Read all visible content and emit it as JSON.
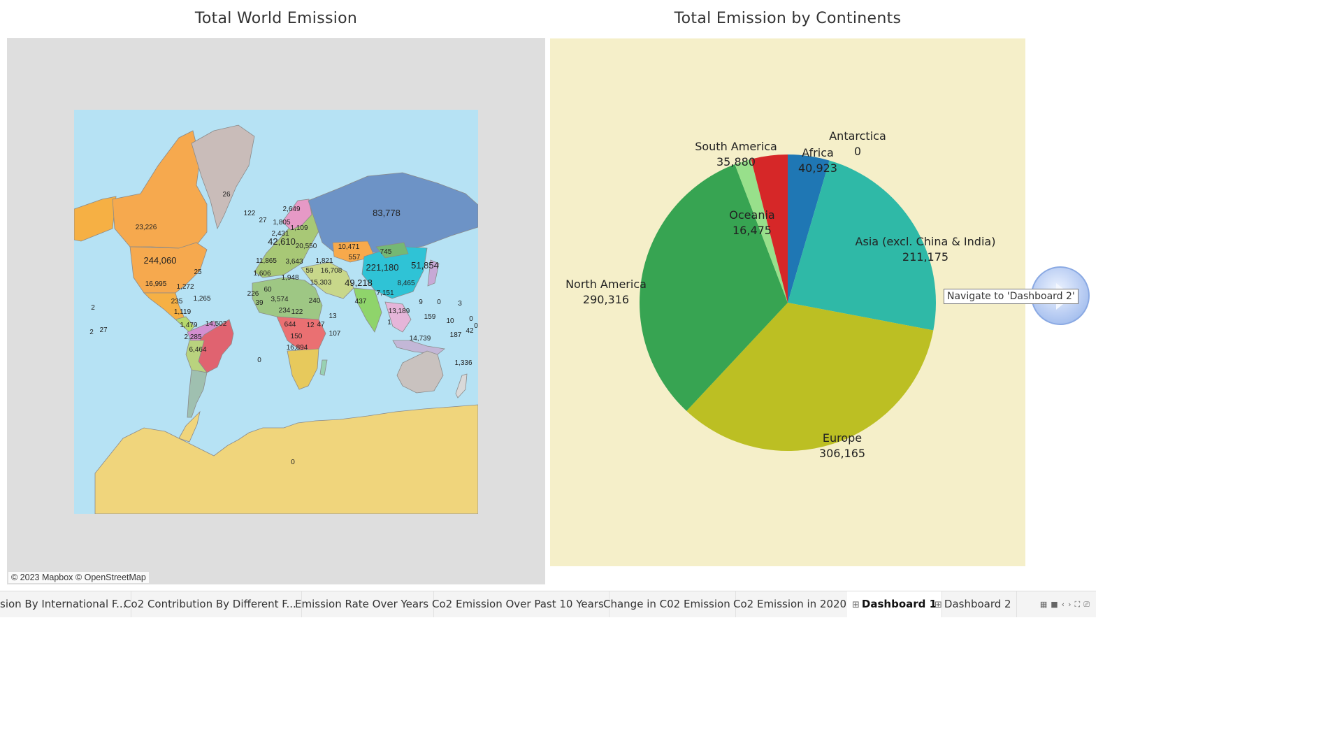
{
  "map": {
    "title": "Total World Emission",
    "credit": "© 2023 Mapbox © OpenStreetMap",
    "labels": [
      "26",
      "122",
      "27",
      "2,649",
      "1,805",
      "1,109",
      "2,431",
      "42,610",
      "20,550",
      "83,778",
      "10,471",
      "23,226",
      "745",
      "557",
      "244,060",
      "11,865",
      "3,643",
      "1,821",
      "16,708",
      "221,180",
      "51,854",
      "25",
      "1,606",
      "1,948",
      "15,303",
      "49,218",
      "8,465",
      "16,995",
      "1,272",
      "60",
      "226",
      "3,574",
      "240",
      "437",
      "7,151",
      "235",
      "1,265",
      "39",
      "234",
      "122",
      "13,189",
      "9",
      "0",
      "3",
      "2",
      "1,119",
      "13",
      "159",
      "10",
      "0",
      "1,479",
      "14,502",
      "644",
      "12",
      "47",
      "107",
      "1",
      "0",
      "2",
      "27",
      "2,285",
      "150",
      "187",
      "42",
      "6,464",
      "16,894",
      "14,739",
      "1,336",
      "0",
      "0",
      "59"
    ]
  },
  "chart_data": {
    "type": "pie",
    "title": "Total Emission by Continents",
    "slices": [
      {
        "label": "Africa",
        "value": 40923,
        "display": "40,923",
        "color": "#1f77b4"
      },
      {
        "label": "Antarctica",
        "value": 0,
        "display": "0",
        "color": "#888888"
      },
      {
        "label": "Asia (excl. China & India)",
        "value": 211175,
        "display": "211,175",
        "color": "#2fb9a7"
      },
      {
        "label": "Europe",
        "value": 306165,
        "display": "306,165",
        "color": "#bcbf23"
      },
      {
        "label": "North America",
        "value": 290316,
        "display": "290,316",
        "color": "#37a452"
      },
      {
        "label": "Oceania",
        "value": 16475,
        "display": "16,475",
        "color": "#98e08b"
      },
      {
        "label": "South America",
        "value": 35880,
        "display": "35,880",
        "color": "#d62728"
      }
    ]
  },
  "navigation": {
    "tooltip": "Navigate to 'Dashboard 2'"
  },
  "tabs": [
    {
      "label": "sion By International  F...",
      "active": false
    },
    {
      "label": "Co2 Contribution By Different F...",
      "active": false
    },
    {
      "label": "Emission Rate Over Years",
      "active": false
    },
    {
      "label": "Co2 Emission Over Past 10 Years",
      "active": false
    },
    {
      "label": "Change in C02 Emission",
      "active": false
    },
    {
      "label": "Co2 Emission in 2020",
      "active": false
    },
    {
      "label": "Dashboard 1",
      "active": true
    },
    {
      "label": "Dashboard 2",
      "active": false
    }
  ],
  "bar_icons": [
    "grid-icon",
    "square-icon",
    "prev-icon",
    "next-icon",
    "fullscreen-icon",
    "present-icon"
  ]
}
